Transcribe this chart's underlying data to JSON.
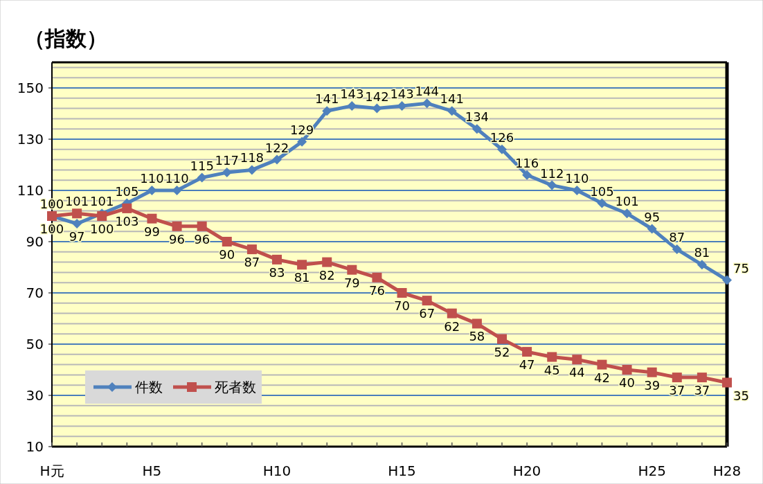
{
  "chart_data": {
    "type": "line",
    "ylabel": "（指数）",
    "categories": [
      "H元",
      null,
      null,
      null,
      "H5",
      null,
      null,
      null,
      null,
      "H10",
      null,
      null,
      null,
      null,
      "H15",
      null,
      null,
      null,
      null,
      "H20",
      null,
      null,
      null,
      null,
      "H25",
      null,
      null,
      "H28"
    ],
    "series": [
      {
        "name": "件数",
        "color": "#4f81bd",
        "marker": "diamond",
        "values": [
          100,
          97,
          101,
          105,
          110,
          110,
          115,
          117,
          118,
          122,
          129,
          141,
          143,
          142,
          143,
          144,
          141,
          134,
          126,
          116,
          112,
          110,
          105,
          101,
          95,
          87,
          81,
          75
        ]
      },
      {
        "name": "死者数",
        "color": "#c0504d",
        "marker": "square",
        "values": [
          100,
          101,
          100,
          103,
          99,
          96,
          96,
          90,
          87,
          83,
          81,
          82,
          79,
          76,
          70,
          67,
          62,
          58,
          52,
          47,
          45,
          44,
          42,
          40,
          39,
          37,
          37,
          35
        ]
      }
    ],
    "ylim": [
      10,
      160
    ],
    "yticks": [
      10,
      30,
      50,
      70,
      90,
      110,
      130,
      150
    ],
    "grid": true,
    "legend": "bottom left",
    "data_labels": true
  }
}
